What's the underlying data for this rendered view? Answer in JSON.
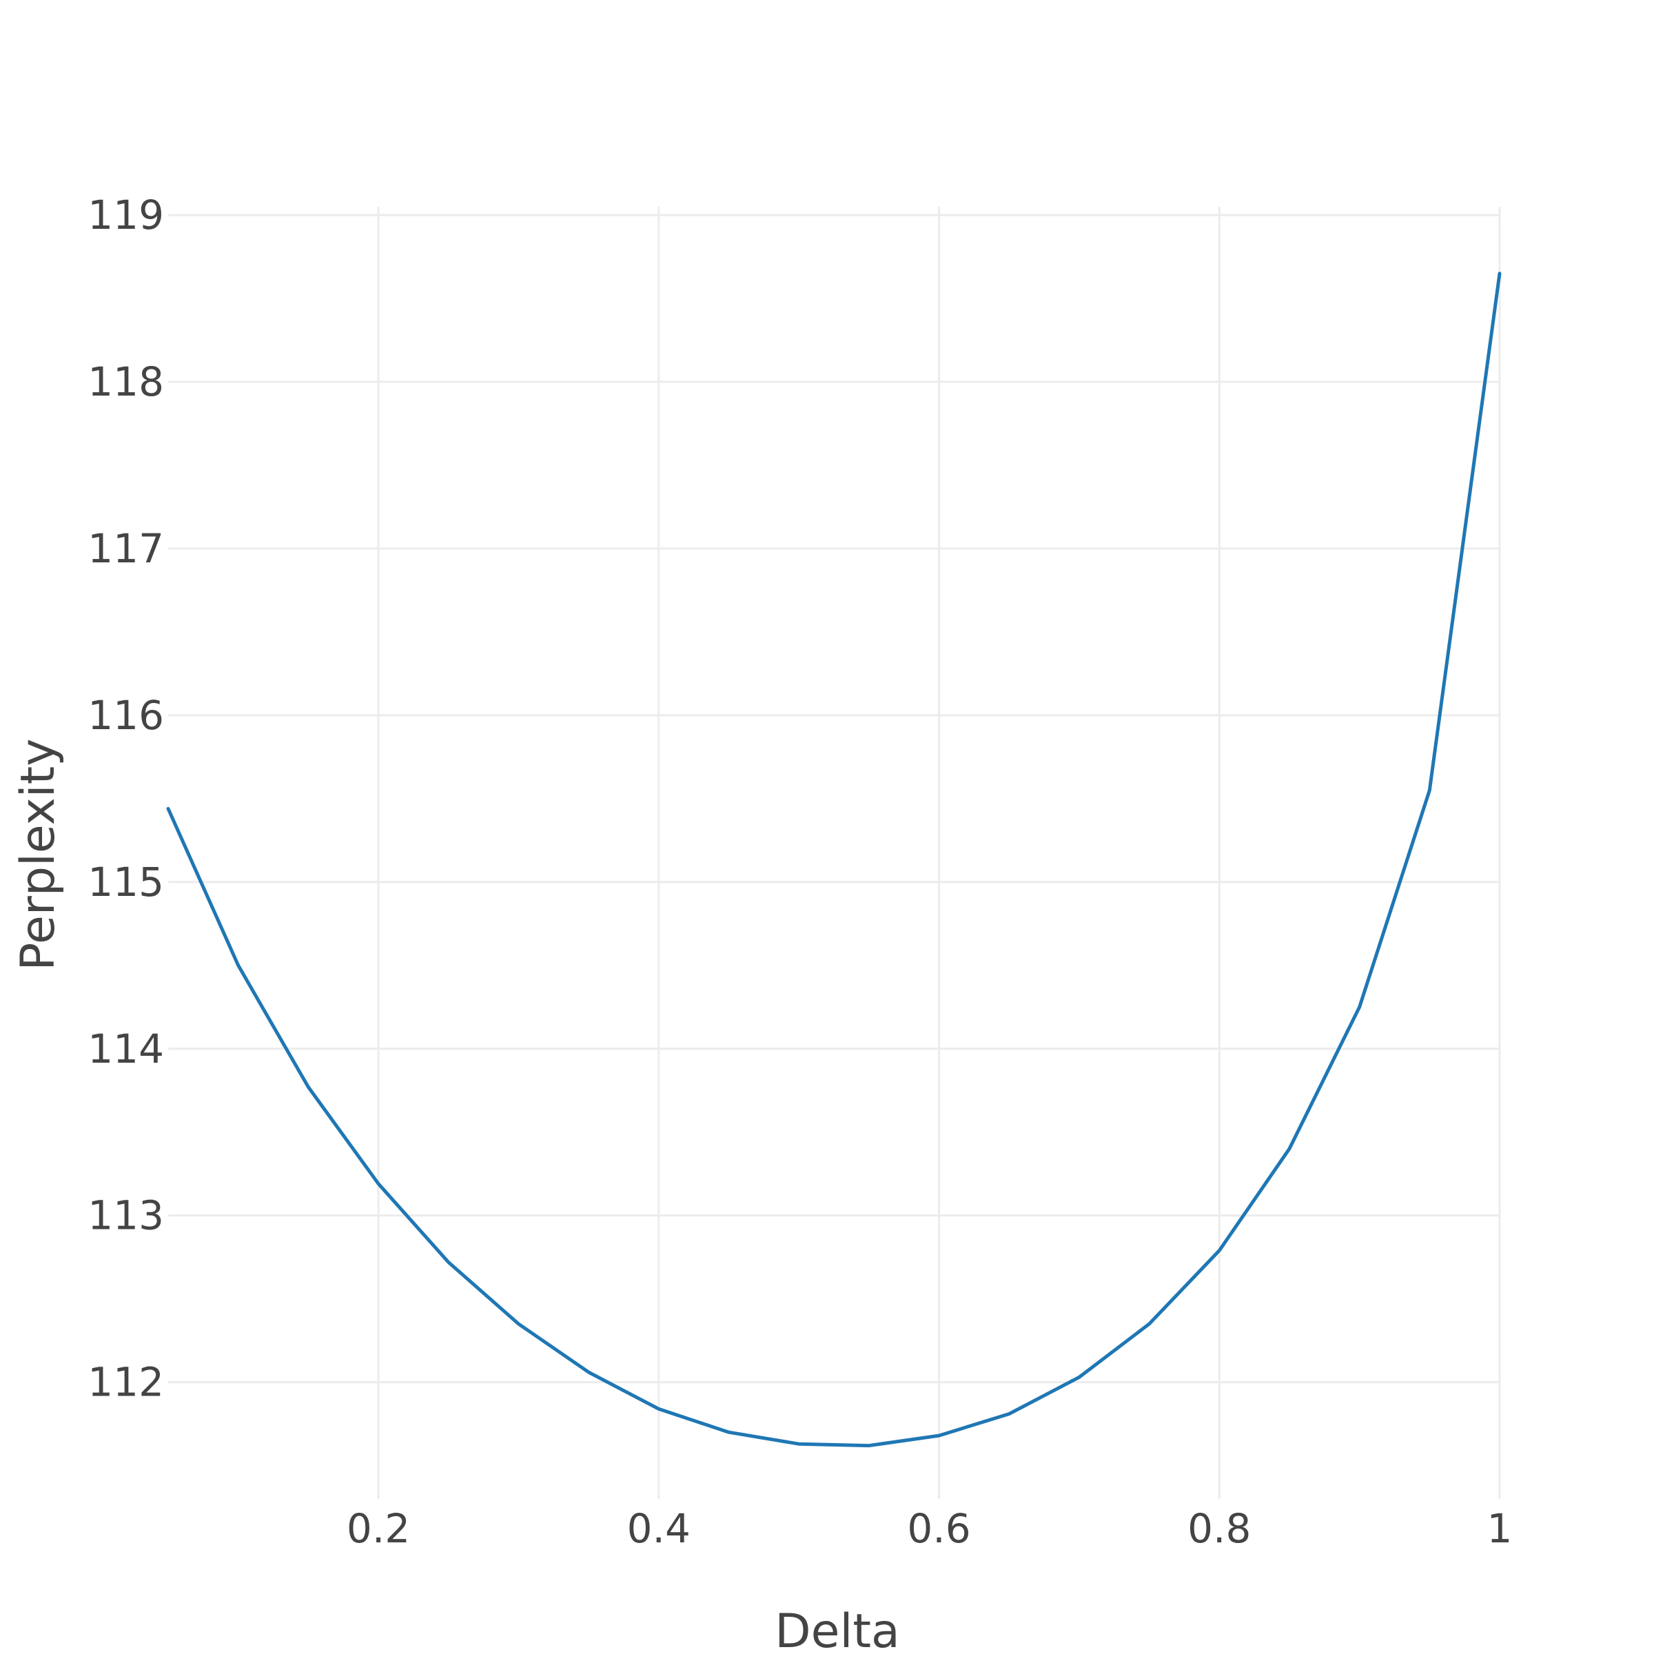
{
  "chart_data": {
    "type": "line",
    "title": "",
    "xlabel": "Delta",
    "ylabel": "Perplexity",
    "xlim": [
      0.05,
      1.0
    ],
    "ylim": [
      111.3,
      119.05
    ],
    "grid": true,
    "x_ticks": [
      {
        "value": 0.2,
        "label": "0.2"
      },
      {
        "value": 0.4,
        "label": "0.4"
      },
      {
        "value": 0.6,
        "label": "0.6"
      },
      {
        "value": 0.8,
        "label": "0.8"
      },
      {
        "value": 1.0,
        "label": "1"
      }
    ],
    "y_ticks": [
      {
        "value": 112,
        "label": "112"
      },
      {
        "value": 113,
        "label": "113"
      },
      {
        "value": 114,
        "label": "114"
      },
      {
        "value": 115,
        "label": "115"
      },
      {
        "value": 116,
        "label": "116"
      },
      {
        "value": 117,
        "label": "117"
      },
      {
        "value": 118,
        "label": "118"
      },
      {
        "value": 119,
        "label": "119"
      }
    ],
    "series": [
      {
        "color": "#1f77b4",
        "x": [
          0.05,
          0.1,
          0.15,
          0.2,
          0.25,
          0.3,
          0.35,
          0.4,
          0.45,
          0.5,
          0.55,
          0.6,
          0.65,
          0.7,
          0.75,
          0.8,
          0.85,
          0.9,
          0.95,
          1.0
        ],
        "y": [
          115.44,
          114.5,
          113.77,
          113.19,
          112.72,
          112.35,
          112.06,
          111.84,
          111.7,
          111.63,
          111.62,
          111.68,
          111.81,
          112.03,
          112.35,
          112.79,
          113.4,
          114.25,
          115.55,
          118.65
        ]
      }
    ]
  }
}
